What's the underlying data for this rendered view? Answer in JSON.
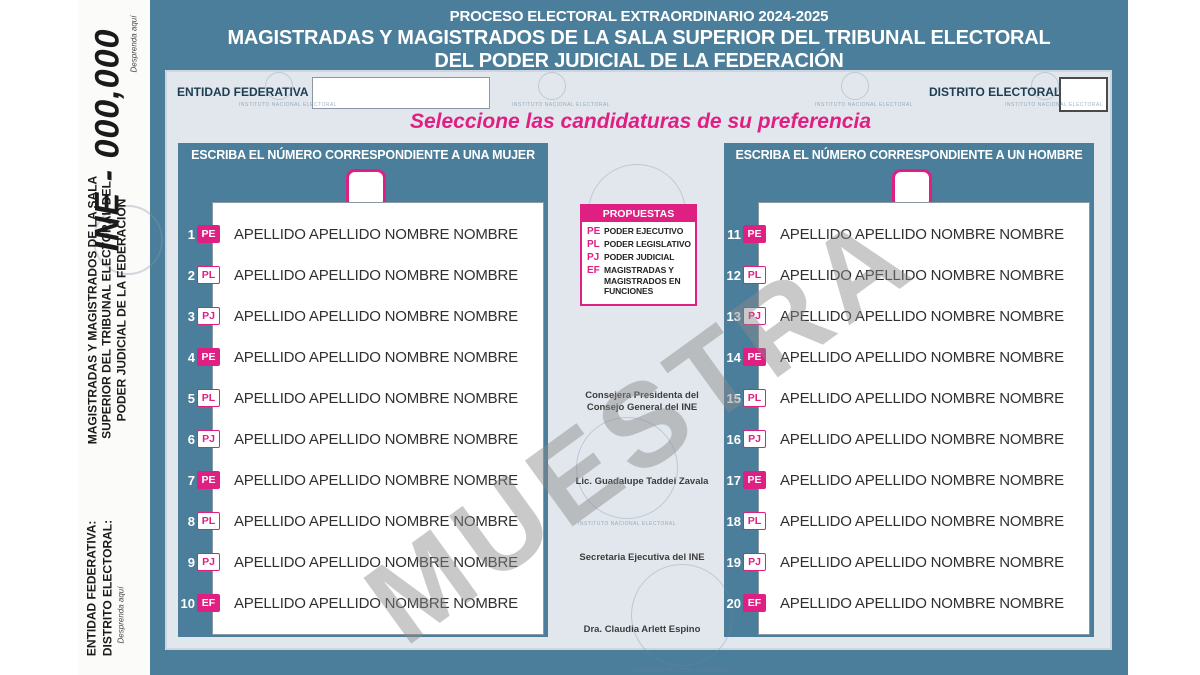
{
  "watermark_text": "MUESTRA",
  "seal_caption": "INSTITUTO NACIONAL ELECTORAL",
  "header": {
    "line1": "PROCESO ELECTORAL EXTRAORDINARIO 2024-2025",
    "line2": "MAGISTRADAS Y MAGISTRADOS DE LA SALA SUPERIOR DEL TRIBUNAL ELECTORAL",
    "line3": "DEL PODER JUDICIAL DE LA FEDERACIÓN"
  },
  "stub": {
    "ine_number": "INE - 000,000",
    "detach_top": "Desprenda aquí",
    "detach_bottom": "Desprenda aquí",
    "title_lines": "MAGISTRADAS Y MAGISTRADOS DE LA SALA\nSUPERIOR DEL TRIBUNAL ELECTORAL DEL\nPODER JUDICIAL DE LA FEDERACIÓN",
    "bottom_lines": "ENTIDAD FEDERATIVA:\nDISTRITO ELECTORAL:"
  },
  "form": {
    "entidad_label": "ENTIDAD FEDERATIVA",
    "entidad_value": "",
    "distrito_label": "DISTRITO ELECTORAL",
    "distrito_value": ""
  },
  "instruction": "Seleccione las candidaturas de su preferencia",
  "propuestas": {
    "title": "PROPUESTAS",
    "items": [
      {
        "code": "PE",
        "label": "PODER EJECUTIVO"
      },
      {
        "code": "PL",
        "label": "PODER LEGISLATIVO"
      },
      {
        "code": "PJ",
        "label": "PODER JUDICIAL"
      },
      {
        "code": "EF",
        "label": "MAGISTRADAS Y MAGISTRADOS EN FUNCIONES"
      }
    ]
  },
  "columns": {
    "women": {
      "header": "ESCRIBA EL NÚMERO CORRESPONDIENTE A UNA MUJER",
      "entry_value": "",
      "rows": [
        {
          "num": "1",
          "tag": "PE",
          "name": "APELLIDO APELLIDO NOMBRE NOMBRE"
        },
        {
          "num": "2",
          "tag": "PL",
          "name": "APELLIDO APELLIDO NOMBRE NOMBRE"
        },
        {
          "num": "3",
          "tag": "PJ",
          "name": "APELLIDO APELLIDO NOMBRE NOMBRE"
        },
        {
          "num": "4",
          "tag": "PE",
          "name": "APELLIDO APELLIDO NOMBRE NOMBRE"
        },
        {
          "num": "5",
          "tag": "PL",
          "name": "APELLIDO APELLIDO NOMBRE NOMBRE"
        },
        {
          "num": "6",
          "tag": "PJ",
          "name": "APELLIDO APELLIDO NOMBRE NOMBRE"
        },
        {
          "num": "7",
          "tag": "PE",
          "name": "APELLIDO APELLIDO NOMBRE NOMBRE"
        },
        {
          "num": "8",
          "tag": "PL",
          "name": "APELLIDO APELLIDO NOMBRE NOMBRE"
        },
        {
          "num": "9",
          "tag": "PJ",
          "name": "APELLIDO APELLIDO NOMBRE NOMBRE"
        },
        {
          "num": "10",
          "tag": "EF",
          "name": "APELLIDO APELLIDO NOMBRE NOMBRE"
        }
      ]
    },
    "men": {
      "header": "ESCRIBA EL NÚMERO CORRESPONDIENTE A UN HOMBRE",
      "entry_value": "",
      "rows": [
        {
          "num": "11",
          "tag": "PE",
          "name": "APELLIDO APELLIDO NOMBRE NOMBRE"
        },
        {
          "num": "12",
          "tag": "PL",
          "name": "APELLIDO APELLIDO NOMBRE NOMBRE"
        },
        {
          "num": "13",
          "tag": "PJ",
          "name": "APELLIDO APELLIDO NOMBRE NOMBRE"
        },
        {
          "num": "14",
          "tag": "PE",
          "name": "APELLIDO APELLIDO NOMBRE NOMBRE"
        },
        {
          "num": "15",
          "tag": "PL",
          "name": "APELLIDO APELLIDO NOMBRE NOMBRE"
        },
        {
          "num": "16",
          "tag": "PJ",
          "name": "APELLIDO APELLIDO NOMBRE NOMBRE"
        },
        {
          "num": "17",
          "tag": "PE",
          "name": "APELLIDO APELLIDO NOMBRE NOMBRE"
        },
        {
          "num": "18",
          "tag": "PL",
          "name": "APELLIDO APELLIDO NOMBRE NOMBRE"
        },
        {
          "num": "19",
          "tag": "PJ",
          "name": "APELLIDO APELLIDO NOMBRE NOMBRE"
        },
        {
          "num": "20",
          "tag": "EF",
          "name": "APELLIDO APELLIDO NOMBRE NOMBRE"
        }
      ]
    }
  },
  "officials": [
    {
      "role": "Consejera Presidenta del Consejo General del INE",
      "name": "Lic. Guadalupe Taddei Zavala"
    },
    {
      "role": "Secretaria Ejecutiva del INE",
      "name": "Dra. Claudia Arlett Espino"
    }
  ],
  "colors": {
    "teal": "#4b7e9b",
    "pink": "#e01f82",
    "panel_bg": "#e2e7ed",
    "label_navy": "#1c3d52",
    "watermark_gray": "#8a8a8a"
  }
}
